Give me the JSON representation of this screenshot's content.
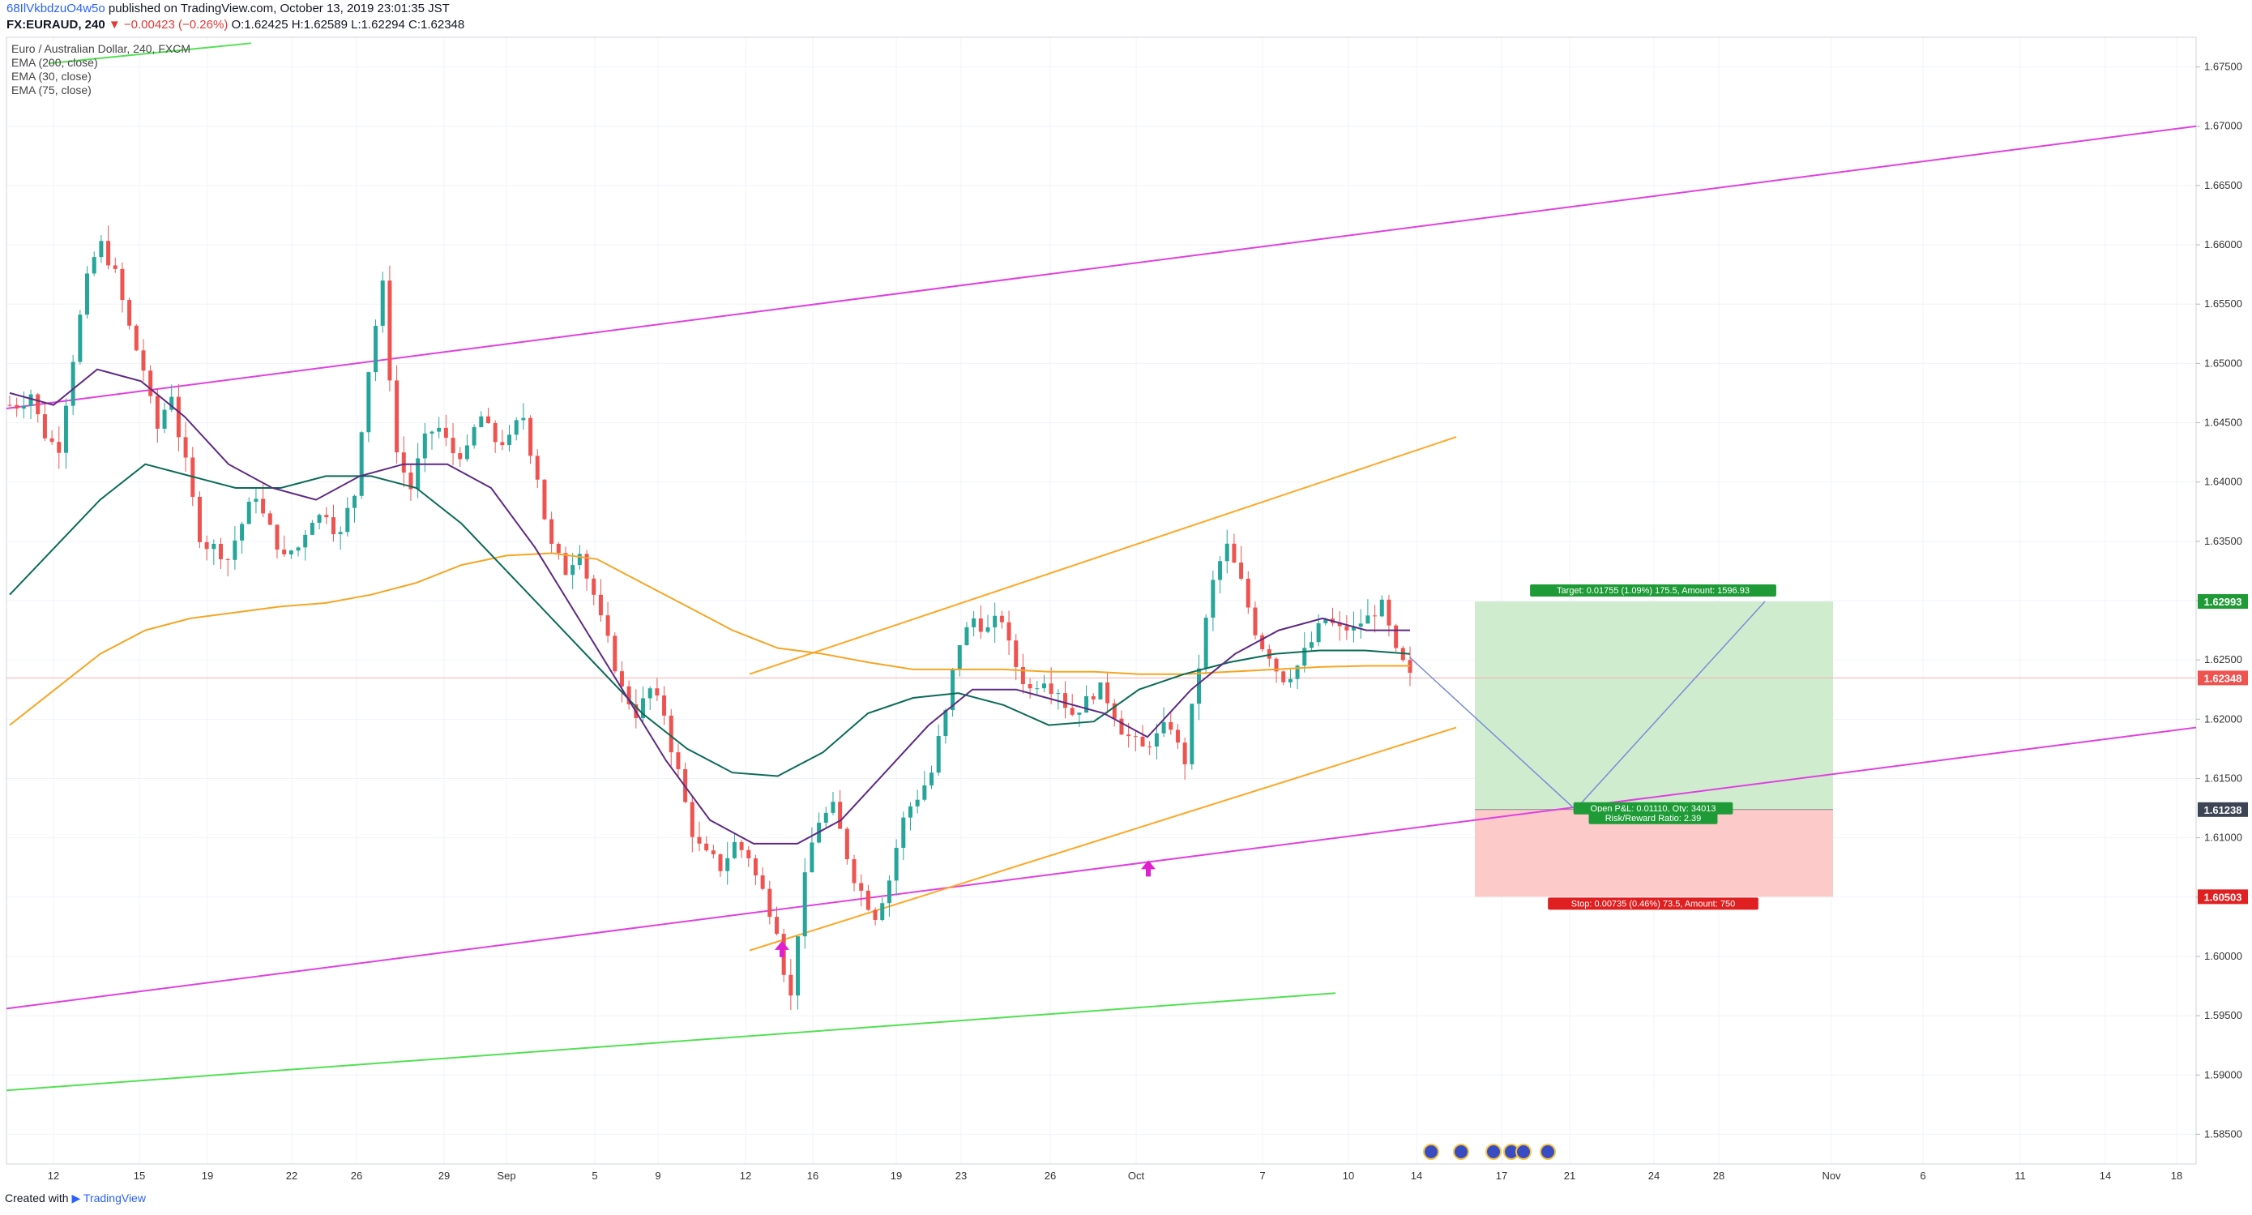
{
  "header": {
    "author": "68IlVkbdzuO4w5o",
    "published": "published on TradingView.com, October 13, 2019 23:01:35 JST",
    "symbol": "FX:EURAUD, 240",
    "change": "▼ −0.00423 (−0.26%)",
    "ohlc": "O:1.62425 H:1.62589 L:1.62294 C:1.62348"
  },
  "legend": {
    "title": "Euro / Australian Dollar, 240, FXCM",
    "ema200": "EMA (200, close)",
    "ema30": "EMA (30, close)",
    "ema75": "EMA (75, close)"
  },
  "footer": {
    "created": "Created with",
    "brand": "TradingView"
  },
  "colors": {
    "up": "#26a69a",
    "down": "#ef5350",
    "ema200": "#f5a623",
    "ema30": "#5e2a84",
    "ema75": "#0b6b57",
    "channel_pink": "#e040e0",
    "channel_orange": "#ffa726",
    "green_line": "#52e052",
    "target_zone": "#cfeccf",
    "stop_zone": "#fdcaca",
    "current_price": "#ef5350"
  },
  "chart_data": {
    "type": "candlestick",
    "timeframe": "240",
    "y_range": [
      1.5825,
      1.6775
    ],
    "x_ticks": [
      "12",
      "15",
      "19",
      "22",
      "26",
      "29",
      "Sep",
      "5",
      "9",
      "12",
      "16",
      "19",
      "23",
      "26",
      "Oct",
      "7",
      "10",
      "14",
      "17",
      "21",
      "24",
      "28",
      "Nov",
      "6",
      "11",
      "14",
      "18"
    ],
    "y_ticks": [
      "1.67500",
      "1.67000",
      "1.66500",
      "1.66000",
      "1.65500",
      "1.65000",
      "1.64500",
      "1.64000",
      "1.63500",
      "1.63000",
      "1.62500",
      "1.62000",
      "1.61500",
      "1.61000",
      "1.60500",
      "1.60000",
      "1.59500",
      "1.59000",
      "1.58500"
    ],
    "price_labels": {
      "target": "1.62993",
      "current": "1.62348",
      "entry": "1.61238",
      "stop": "1.60503"
    },
    "position": {
      "target_label": "Target: 0.01755 (1.09%) 175.5, Amount: 1596.93",
      "open_label": "Open P&L: 0.01110, Qty: 34013",
      "rr_label": "Risk/Reward Ratio: 2.39",
      "stop_label": "Stop: 0.00735 (0.46%) 73.5, Amount: 750",
      "target_price": 1.62993,
      "entry_price": 1.61238,
      "stop_price": 1.60503
    },
    "close_path": [
      1.6465,
      1.6475,
      1.644,
      1.643,
      1.6505,
      1.657,
      1.66,
      1.6575,
      1.653,
      1.6495,
      1.6445,
      1.6475,
      1.6415,
      1.6355,
      1.6345,
      1.6335,
      1.6365,
      1.639,
      1.636,
      1.6335,
      1.6345,
      1.637,
      1.6375,
      1.6355,
      1.639,
      1.6495,
      1.6565,
      1.6425,
      1.6395,
      1.6435,
      1.6445,
      1.6425,
      1.6425,
      1.6455,
      1.6435,
      1.6435,
      1.6455,
      1.6405,
      1.6345,
      1.6325,
      1.6345,
      1.6305,
      1.6265,
      1.6225,
      1.6205,
      1.6225,
      1.6205,
      1.6155,
      1.6105,
      1.6085,
      1.6075,
      1.6095,
      1.6085,
      1.6055,
      1.6025,
      1.5965,
      1.6065,
      1.6115,
      1.6125,
      1.6085,
      1.6055,
      1.6035,
      1.6065,
      1.6115,
      1.6135,
      1.6155,
      1.6205,
      1.6265,
      1.6285,
      1.6275,
      1.6285,
      1.6245,
      1.6225,
      1.6235,
      1.6225,
      1.6205,
      1.6215,
      1.6225,
      1.6205,
      1.6185,
      1.6175,
      1.6185,
      1.6195,
      1.6165,
      1.6245,
      1.6315,
      1.6345,
      1.6315,
      1.6275,
      1.6255,
      1.6235,
      1.6245,
      1.6265,
      1.6285,
      1.6275,
      1.6275,
      1.6285,
      1.6295,
      1.6255,
      1.6235
    ],
    "ema200_path": [
      1.6195,
      1.6225,
      1.6255,
      1.6275,
      1.6285,
      1.629,
      1.6295,
      1.6298,
      1.6305,
      1.6315,
      1.633,
      1.6338,
      1.634,
      1.6335,
      1.6315,
      1.6295,
      1.6275,
      1.626,
      1.6255,
      1.6248,
      1.6242,
      1.6242,
      1.6242,
      1.624,
      1.624,
      1.6238,
      1.6238,
      1.624,
      1.6242,
      1.6244,
      1.6245,
      1.6245
    ],
    "ema75_path": [
      1.6305,
      1.6345,
      1.6385,
      1.6415,
      1.6405,
      1.6395,
      1.6395,
      1.6405,
      1.6405,
      1.6395,
      1.6365,
      1.6325,
      1.6285,
      1.6245,
      1.6205,
      1.6175,
      1.6155,
      1.6152,
      1.6172,
      1.6205,
      1.6218,
      1.6222,
      1.6212,
      1.6195,
      1.6198,
      1.6225,
      1.6238,
      1.6248,
      1.6255,
      1.6258,
      1.6258,
      1.6255
    ],
    "ema30_path": [
      1.6475,
      1.6465,
      1.6495,
      1.6485,
      1.6455,
      1.6415,
      1.6395,
      1.6385,
      1.6405,
      1.6415,
      1.6415,
      1.6395,
      1.6345,
      1.6285,
      1.6225,
      1.6165,
      1.6115,
      1.6095,
      1.6095,
      1.6115,
      1.6155,
      1.6195,
      1.6225,
      1.6225,
      1.6215,
      1.6205,
      1.6185,
      1.6225,
      1.6255,
      1.6275,
      1.6285,
      1.6275,
      1.6275
    ]
  }
}
